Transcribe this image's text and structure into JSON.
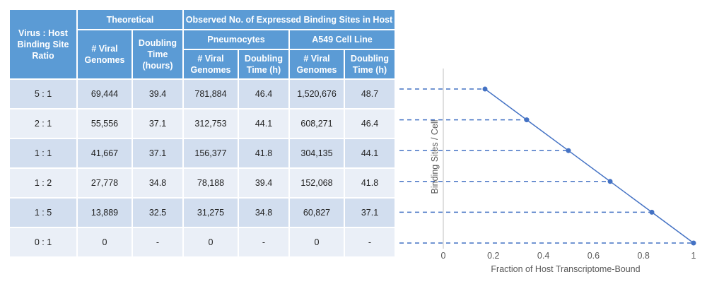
{
  "table": {
    "header": {
      "ratio_label": "Virus : Host Binding Site Ratio",
      "theoretical": "Theoretical",
      "observed": "Observed No. of Expressed Binding Sites in Host",
      "pneumocytes": "Pneumocytes",
      "a549": "A549 Cell Line",
      "cols": [
        "# Viral Genomes",
        "Doubling Time (hours)",
        "# Viral Genomes",
        "Doubling Time (h)",
        "# Viral Genomes",
        "Doubling Time (h)"
      ]
    },
    "rows": [
      [
        "5 : 1",
        "69,444",
        "39.4",
        "781,884",
        "46.4",
        "1,520,676",
        "48.7"
      ],
      [
        "2 : 1",
        "55,556",
        "37.1",
        "312,753",
        "44.1",
        "608,271",
        "46.4"
      ],
      [
        "1 : 1",
        "41,667",
        "37.1",
        "156,377",
        "41.8",
        "304,135",
        "44.1"
      ],
      [
        "1 : 2",
        "27,778",
        "34.8",
        "78,188",
        "39.4",
        "152,068",
        "41.8"
      ],
      [
        "1 : 5",
        "13,889",
        "32.5",
        "31,275",
        "34.8",
        "60,827",
        "37.1"
      ],
      [
        "0 : 1",
        "0",
        "-",
        "0",
        "-",
        "0",
        "-"
      ]
    ]
  },
  "chart_data": {
    "type": "line",
    "title": "",
    "xlabel": "Fraction of Host Transcriptome-Bound",
    "ylabel": "Binding Sites / Cell",
    "xlim": [
      0,
      1
    ],
    "x_ticks": [
      "0",
      "0.2",
      "0.4",
      "0.6",
      "0.8",
      "1"
    ],
    "y_ticks": [],
    "series": [
      {
        "name": "Binding Sites / Cell",
        "x": [
          0.1667,
          0.3333,
          0.5,
          0.6667,
          0.8333,
          1.0
        ],
        "y": [
          5,
          4,
          3,
          2,
          1,
          0
        ],
        "color": "#4472c4"
      }
    ],
    "guide_line_color": "#4472c4"
  }
}
